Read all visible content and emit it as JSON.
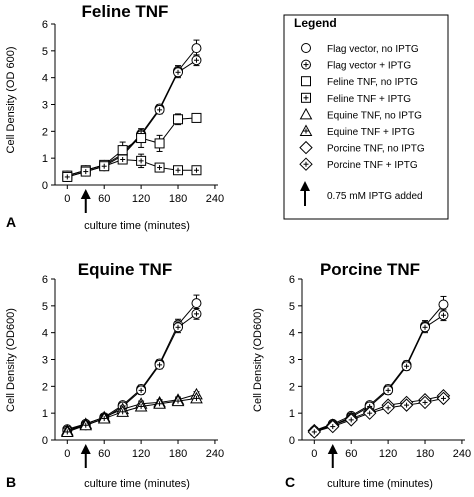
{
  "chart_data": [
    {
      "type": "line",
      "title": "Feline TNF",
      "panel_label": "A",
      "xlabel": "culture time (minutes)",
      "ylabel": "Cell Density (OD 600)",
      "xlim": [
        -20,
        245
      ],
      "ylim": [
        0,
        6
      ],
      "xticks": [
        "0",
        "60",
        "120",
        "180",
        "240"
      ],
      "yticks": [
        "0",
        "1",
        "2",
        "3",
        "4",
        "5",
        "6"
      ],
      "arrow_x": 30,
      "series": [
        {
          "marker": "circle",
          "x": [
            0,
            30,
            60,
            90,
            120,
            150,
            180,
            210
          ],
          "y": [
            0.35,
            0.55,
            0.75,
            1.15,
            1.9,
            2.85,
            4.25,
            5.1
          ],
          "err": [
            0.08,
            0.08,
            0.1,
            0.12,
            0.15,
            0.15,
            0.2,
            0.3
          ]
        },
        {
          "marker": "circle-plus",
          "x": [
            0,
            30,
            60,
            90,
            120,
            150,
            180,
            210
          ],
          "y": [
            0.3,
            0.5,
            0.7,
            1.1,
            1.85,
            2.8,
            4.2,
            4.65
          ],
          "err": [
            0.08,
            0.08,
            0.1,
            0.12,
            0.15,
            0.15,
            0.2,
            0.2
          ]
        },
        {
          "marker": "square",
          "x": [
            0,
            30,
            60,
            90,
            120,
            150,
            180,
            210
          ],
          "y": [
            0.35,
            0.55,
            0.75,
            1.3,
            1.75,
            1.55,
            2.45,
            2.5
          ],
          "err": [
            0.08,
            0.08,
            0.15,
            0.3,
            0.35,
            0.3,
            0.2,
            0
          ]
        },
        {
          "marker": "square-plus",
          "x": [
            0,
            30,
            60,
            90,
            120,
            150,
            180,
            210
          ],
          "y": [
            0.3,
            0.5,
            0.7,
            0.95,
            0.9,
            0.65,
            0.55,
            0.55
          ],
          "err": [
            0.08,
            0.08,
            0.1,
            0.15,
            0.25,
            0.1,
            0.08,
            0.05
          ]
        }
      ]
    },
    {
      "type": "line",
      "title": "Equine TNF",
      "panel_label": "B",
      "xlabel": "culture time (minutes)",
      "ylabel": "Cell Density (OD600)",
      "xlim": [
        -20,
        245
      ],
      "ylim": [
        0,
        6
      ],
      "xticks": [
        "0",
        "60",
        "120",
        "180",
        "240"
      ],
      "yticks": [
        "0",
        "1",
        "2",
        "3",
        "4",
        "5",
        "6"
      ],
      "arrow_x": 30,
      "series": [
        {
          "marker": "circle",
          "x": [
            0,
            30,
            60,
            90,
            120,
            150,
            180,
            210
          ],
          "y": [
            0.4,
            0.6,
            0.85,
            1.3,
            1.9,
            2.85,
            4.3,
            5.1
          ],
          "err": [
            0.08,
            0.08,
            0.1,
            0.12,
            0.15,
            0.15,
            0.2,
            0.3
          ]
        },
        {
          "marker": "circle-plus",
          "x": [
            0,
            30,
            60,
            90,
            120,
            150,
            180,
            210
          ],
          "y": [
            0.35,
            0.55,
            0.8,
            1.25,
            1.85,
            2.8,
            4.2,
            4.7
          ],
          "err": [
            0.08,
            0.08,
            0.1,
            0.12,
            0.15,
            0.15,
            0.2,
            0.2
          ]
        },
        {
          "marker": "triangle",
          "x": [
            0,
            30,
            60,
            90,
            120,
            150,
            180,
            210
          ],
          "y": [
            0.35,
            0.6,
            0.85,
            1.15,
            1.35,
            1.4,
            1.5,
            1.7
          ],
          "err": [
            0.08,
            0.08,
            0.1,
            0.12,
            0.1,
            0.1,
            0.1,
            0.1
          ]
        },
        {
          "marker": "triangle-plus",
          "x": [
            0,
            30,
            60,
            90,
            120,
            150,
            180,
            210
          ],
          "y": [
            0.3,
            0.55,
            0.8,
            1.05,
            1.25,
            1.35,
            1.45,
            1.55
          ],
          "err": [
            0.08,
            0.08,
            0.1,
            0.12,
            0.1,
            0.1,
            0.1,
            0.1
          ]
        }
      ]
    },
    {
      "type": "line",
      "title": "Porcine TNF",
      "panel_label": "C",
      "xlabel": "culture time (minutes)",
      "ylabel": "Cell Density (OD600)",
      "xlim": [
        -20,
        245
      ],
      "ylim": [
        0,
        6
      ],
      "xticks": [
        "0",
        "60",
        "120",
        "180",
        "240"
      ],
      "yticks": [
        "0",
        "1",
        "2",
        "3",
        "4",
        "5",
        "6"
      ],
      "arrow_x": 30,
      "series": [
        {
          "marker": "circle",
          "x": [
            0,
            30,
            60,
            90,
            120,
            150,
            180,
            210
          ],
          "y": [
            0.35,
            0.6,
            0.9,
            1.3,
            1.9,
            2.8,
            4.25,
            5.05
          ],
          "err": [
            0.08,
            0.08,
            0.1,
            0.12,
            0.15,
            0.15,
            0.2,
            0.3
          ]
        },
        {
          "marker": "circle-plus",
          "x": [
            0,
            30,
            60,
            90,
            120,
            150,
            180,
            210
          ],
          "y": [
            0.3,
            0.55,
            0.85,
            1.25,
            1.85,
            2.75,
            4.2,
            4.65
          ],
          "err": [
            0.08,
            0.08,
            0.1,
            0.12,
            0.15,
            0.15,
            0.2,
            0.2
          ]
        },
        {
          "marker": "diamond",
          "x": [
            0,
            30,
            60,
            90,
            120,
            150,
            180,
            210
          ],
          "y": [
            0.35,
            0.55,
            0.8,
            1.05,
            1.3,
            1.4,
            1.5,
            1.65
          ],
          "err": [
            0.08,
            0.08,
            0.1,
            0.1,
            0.1,
            0.1,
            0.1,
            0.1
          ]
        },
        {
          "marker": "diamond-plus",
          "x": [
            0,
            30,
            60,
            90,
            120,
            150,
            180,
            210
          ],
          "y": [
            0.3,
            0.5,
            0.75,
            1.0,
            1.2,
            1.3,
            1.4,
            1.55
          ],
          "err": [
            0.08,
            0.08,
            0.1,
            0.1,
            0.1,
            0.1,
            0.1,
            0.1
          ]
        }
      ]
    }
  ],
  "legend": {
    "title": "Legend",
    "entries": [
      {
        "marker": "circle",
        "label": "Flag vector, no IPTG"
      },
      {
        "marker": "circle-plus",
        "label": "Flag vector + IPTG"
      },
      {
        "marker": "square",
        "label": "Feline TNF, no IPTG"
      },
      {
        "marker": "square-plus",
        "label": "Feline TNF + IPTG"
      },
      {
        "marker": "triangle",
        "label": "Equine TNF, no IPTG"
      },
      {
        "marker": "triangle-plus",
        "label": "Equine TNF + IPTG"
      },
      {
        "marker": "diamond",
        "label": "Porcine TNF, no IPTG"
      },
      {
        "marker": "diamond-plus",
        "label": "Porcine TNF + IPTG"
      }
    ],
    "arrow_label": "0.75 mM IPTG added"
  }
}
